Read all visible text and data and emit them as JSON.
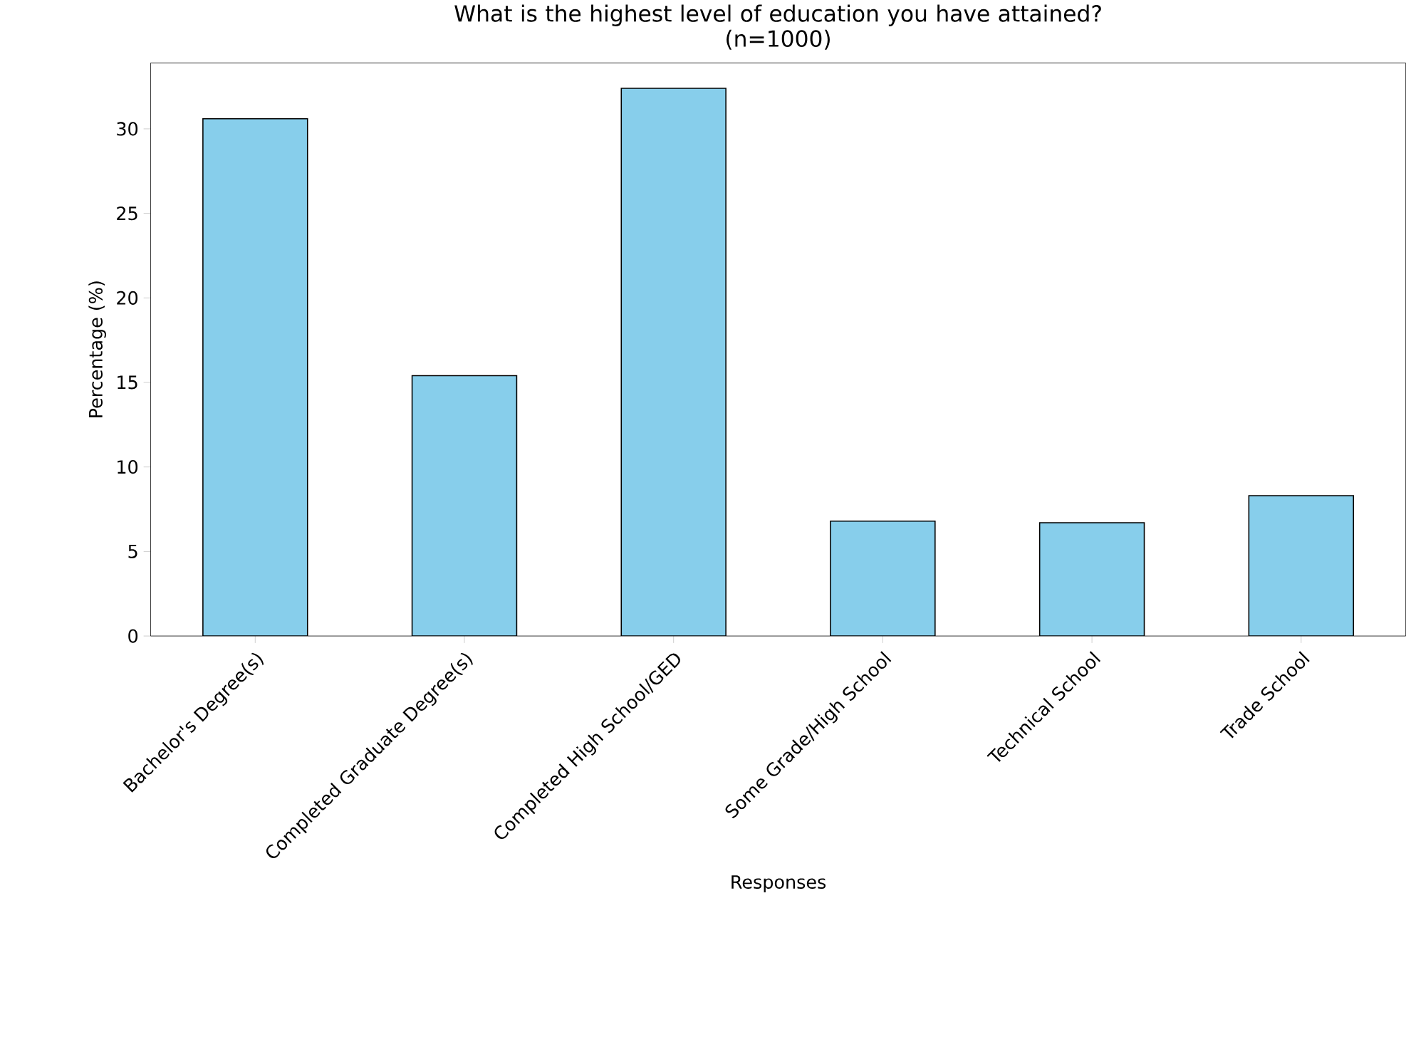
{
  "chart_data": {
    "type": "bar",
    "title": "What is the highest level of education you have attained?",
    "subtitle": "(n=1000)",
    "xlabel": "Responses",
    "ylabel": "Percentage (%)",
    "categories": [
      "Bachelor's Degree(s)",
      "Completed Graduate Degree(s)",
      "Completed High School/GED",
      "Some Grade/High School",
      "Technical School",
      "Trade School"
    ],
    "values": [
      30.6,
      15.4,
      32.4,
      6.8,
      6.7,
      8.3
    ],
    "color": "#87ceeb",
    "ylim": [
      0,
      33.9
    ],
    "yticks": [
      0,
      5,
      10,
      15,
      20,
      25,
      30
    ]
  }
}
